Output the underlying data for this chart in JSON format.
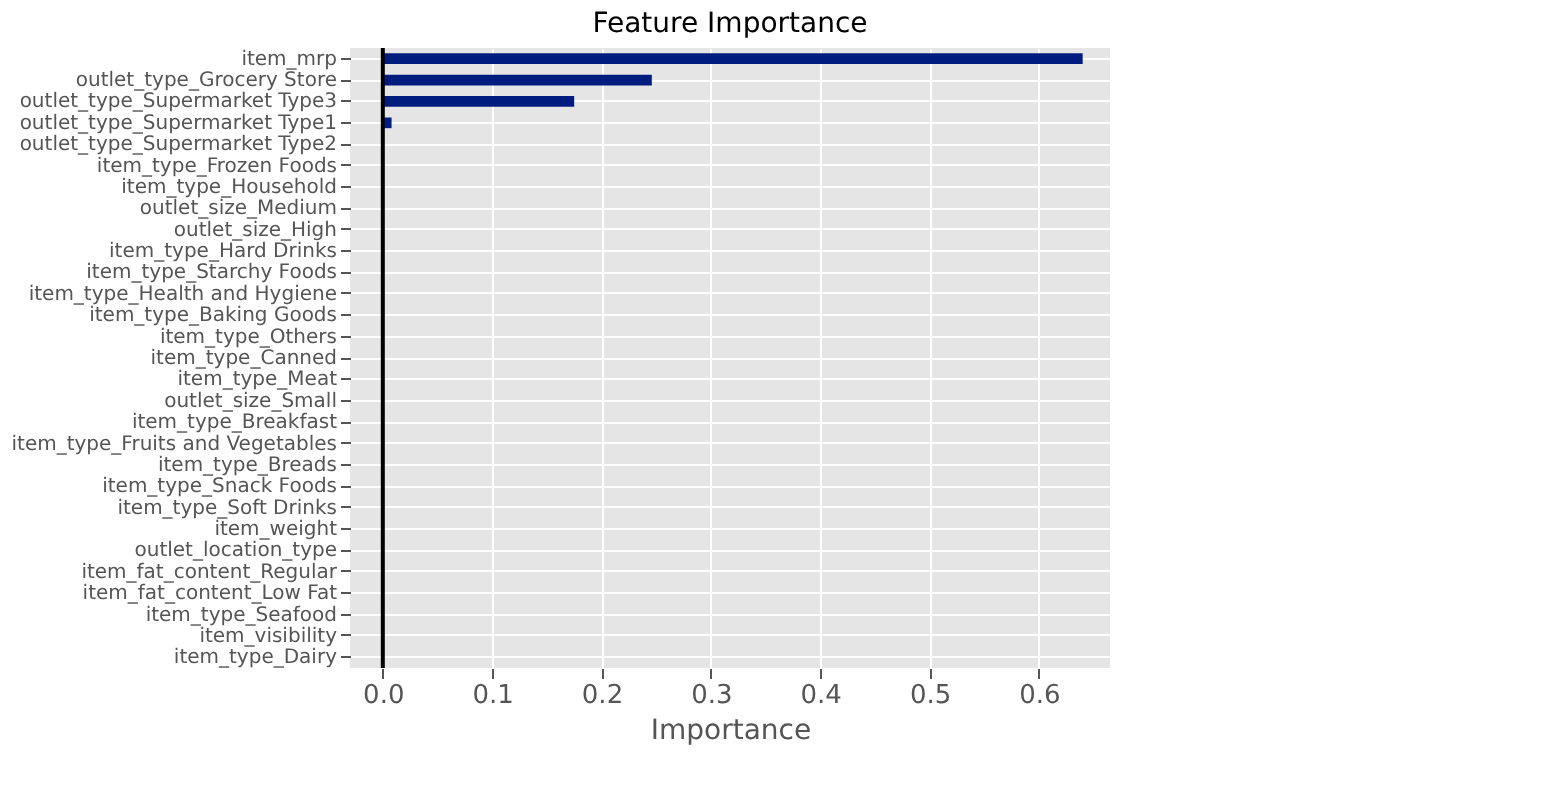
{
  "chart_data": {
    "type": "bar",
    "orientation": "horizontal",
    "title": "Feature Importance",
    "xlabel": "Importance",
    "categories": [
      "item_mrp",
      "outlet_type_Grocery Store",
      "outlet_type_Supermarket Type3",
      "outlet_type_Supermarket Type1",
      "outlet_type_Supermarket Type2",
      "item_type_Frozen Foods",
      "item_type_Household",
      "outlet_size_Medium",
      "outlet_size_High",
      "item_type_Hard Drinks",
      "item_type_Starchy Foods",
      "item_type_Health and Hygiene",
      "item_type_Baking Goods",
      "item_type_Others",
      "item_type_Canned",
      "item_type_Meat",
      "outlet_size_Small",
      "item_type_Breakfast",
      "item_type_Fruits and Vegetables",
      "item_type_Breads",
      "item_type_Snack Foods",
      "item_type_Soft Drinks",
      "item_weight",
      "outlet_location_type",
      "item_fat_content_Regular",
      "item_fat_content_Low Fat",
      "item_type_Seafood",
      "item_visibility",
      "item_type_Dairy"
    ],
    "values": [
      0.64,
      0.246,
      0.175,
      0.008,
      0,
      0,
      0,
      0,
      0,
      0,
      0,
      0,
      0,
      0,
      0,
      0,
      0,
      0,
      0,
      0,
      0,
      0,
      0,
      0,
      0,
      0,
      0,
      0,
      0
    ],
    "color": "#001c7f",
    "xlim": [
      -0.03,
      0.665
    ],
    "xticks": [
      {
        "value": 0,
        "label": "0.0"
      },
      0.1,
      0.2,
      0.3,
      0.4,
      0.5,
      0.6
    ],
    "ref_lines": [
      {
        "axis": "x",
        "value": 0,
        "color": "#000000"
      }
    ],
    "grid": true
  }
}
